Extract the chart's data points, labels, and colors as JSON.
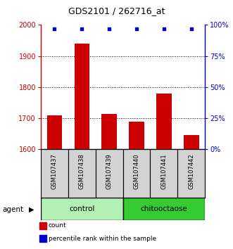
{
  "title": "GDS2101 / 262716_at",
  "samples": [
    "GSM107437",
    "GSM107438",
    "GSM107439",
    "GSM107440",
    "GSM107441",
    "GSM107442"
  ],
  "bar_values": [
    1710,
    1940,
    1715,
    1690,
    1780,
    1645
  ],
  "percentile_values": [
    97,
    97,
    97,
    97,
    97,
    97
  ],
  "bar_color": "#cc0000",
  "dot_color": "#0000cc",
  "ylim_left": [
    1600,
    2000
  ],
  "ylim_right": [
    0,
    100
  ],
  "yticks_left": [
    1600,
    1700,
    1800,
    1900,
    2000
  ],
  "yticks_right": [
    0,
    25,
    50,
    75,
    100
  ],
  "groups": [
    {
      "label": "control",
      "indices": [
        0,
        1,
        2
      ],
      "color": "#b3f0b3"
    },
    {
      "label": "chitooctaose",
      "indices": [
        3,
        4,
        5
      ],
      "color": "#33cc33"
    }
  ],
  "agent_label": "agent",
  "legend_items": [
    {
      "label": "count",
      "color": "#cc0000"
    },
    {
      "label": "percentile rank within the sample",
      "color": "#0000cc"
    }
  ],
  "bar_bottom": 1600,
  "background_color": "#ffffff",
  "label_bg": "#d3d3d3"
}
